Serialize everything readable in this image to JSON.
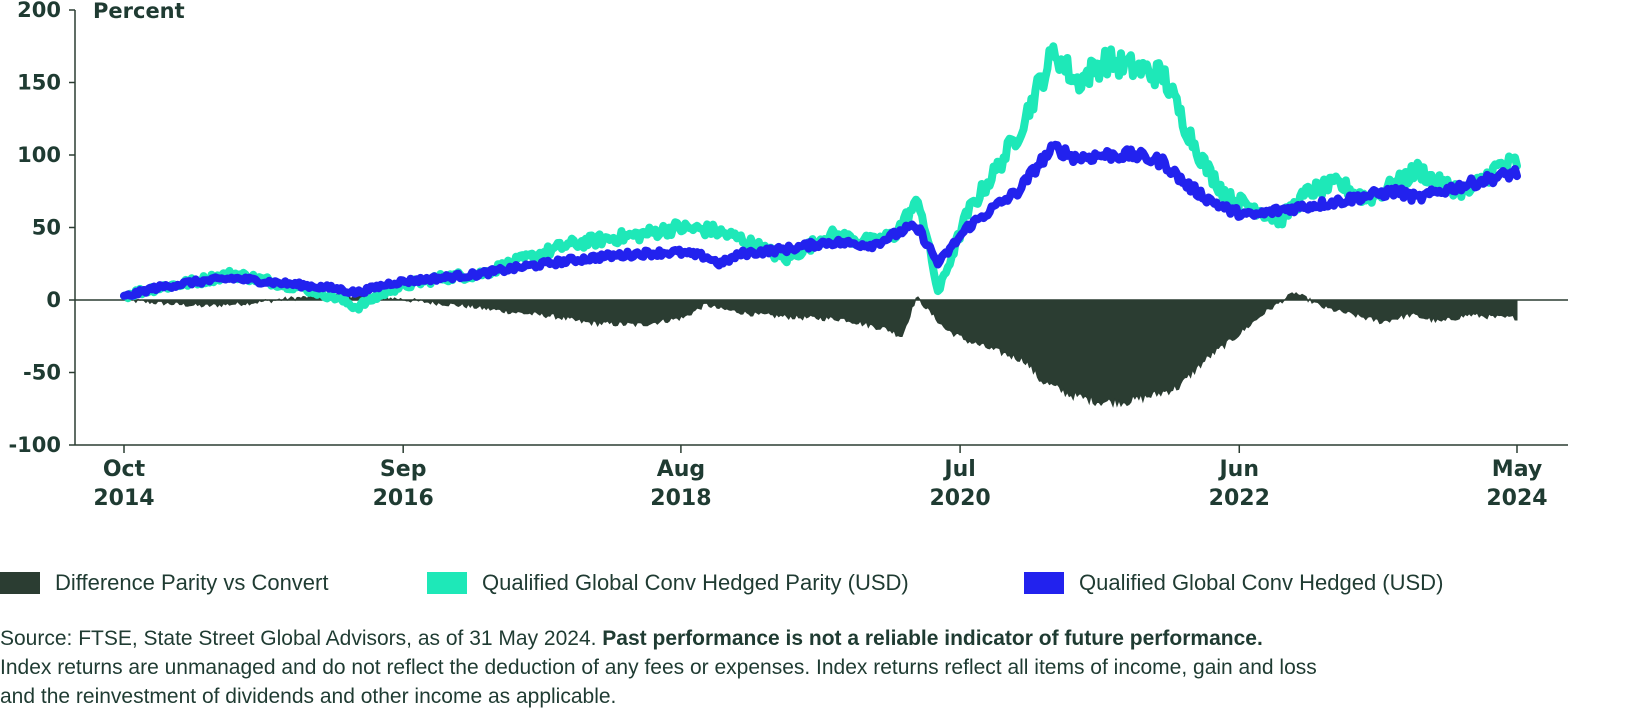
{
  "chart_data": {
    "type": "line",
    "ylabel": "Percent",
    "ylim": [
      -100,
      200
    ],
    "yticks": [
      "200",
      "150",
      "100",
      "50",
      "0",
      "-50",
      "-100"
    ],
    "xticks": [
      {
        "month": "Oct",
        "year": "2014",
        "date": 2014.75
      },
      {
        "month": "Sep",
        "year": "2016",
        "date": 2016.67
      },
      {
        "month": "Aug",
        "year": "2018",
        "date": 2018.58
      },
      {
        "month": "Jul",
        "year": "2020",
        "date": 2020.5
      },
      {
        "month": "Jun",
        "year": "2022",
        "date": 2022.42
      },
      {
        "month": "May",
        "year": "2024",
        "date": 2024.33
      }
    ],
    "xlim": [
      2014.75,
      2024.33
    ],
    "series": [
      {
        "name": "Difference Parity vs Convert",
        "kind": "area",
        "color": "#2b3d32",
        "x": [
          2014.75,
          2015.0,
          2015.3,
          2015.6,
          2015.9,
          2016.2,
          2016.5,
          2016.8,
          2017.1,
          2017.4,
          2017.7,
          2017.9,
          2018.0,
          2018.3,
          2018.6,
          2018.75,
          2018.85,
          2019.1,
          2019.4,
          2019.7,
          2019.9,
          2020.0,
          2020.1,
          2020.2,
          2020.4,
          2020.55,
          2020.75,
          2020.95,
          2021.05,
          2021.25,
          2021.45,
          2021.65,
          2021.85,
          2022.0,
          2022.2,
          2022.4,
          2022.6,
          2022.8,
          2023.0,
          2023.2,
          2023.4,
          2023.6,
          2023.8,
          2024.0,
          2024.2,
          2024.33
        ],
        "y": [
          0,
          -2,
          -4,
          -2,
          1,
          3,
          2,
          -1,
          -4,
          -8,
          -11,
          -15,
          -16,
          -17,
          -12,
          -3,
          -6,
          -10,
          -12,
          -13,
          -18,
          -20,
          -25,
          2,
          -20,
          -28,
          -35,
          -42,
          -55,
          -65,
          -70,
          -70,
          -65,
          -60,
          -40,
          -25,
          -8,
          5,
          -5,
          -10,
          -15,
          -10,
          -15,
          -10,
          -12,
          -12
        ]
      },
      {
        "name": "Qualified Global Conv Hedged Parity (USD)",
        "kind": "line",
        "color": "#1ee8b8",
        "x": [
          2014.75,
          2014.95,
          2015.2,
          2015.5,
          2015.8,
          2016.0,
          2016.2,
          2016.35,
          2016.6,
          2016.9,
          2017.2,
          2017.5,
          2017.8,
          2018.05,
          2018.3,
          2018.55,
          2018.8,
          2019.0,
          2019.3,
          2019.6,
          2019.9,
          2020.05,
          2020.15,
          2020.22,
          2020.35,
          2020.55,
          2020.75,
          2020.9,
          2021.05,
          2021.15,
          2021.3,
          2021.5,
          2021.7,
          2021.9,
          2022.05,
          2022.2,
          2022.35,
          2022.5,
          2022.7,
          2022.9,
          2023.1,
          2023.3,
          2023.5,
          2023.65,
          2023.8,
          2024.0,
          2024.2,
          2024.33
        ],
        "y": [
          3,
          8,
          12,
          18,
          12,
          8,
          2,
          -5,
          8,
          15,
          18,
          28,
          38,
          42,
          45,
          50,
          48,
          42,
          28,
          45,
          40,
          45,
          60,
          68,
          5,
          60,
          90,
          115,
          150,
          172,
          150,
          165,
          160,
          155,
          120,
          90,
          70,
          65,
          55,
          75,
          80,
          70,
          80,
          90,
          80,
          75,
          92,
          95
        ]
      },
      {
        "name": "Qualified Global Conv Hedged (USD)",
        "kind": "line",
        "color": "#2222ee",
        "x": [
          2014.75,
          2014.95,
          2015.2,
          2015.5,
          2015.8,
          2016.0,
          2016.2,
          2016.35,
          2016.6,
          2016.9,
          2017.2,
          2017.5,
          2017.8,
          2018.05,
          2018.3,
          2018.55,
          2018.75,
          2018.85,
          2019.0,
          2019.3,
          2019.6,
          2019.9,
          2020.05,
          2020.15,
          2020.22,
          2020.35,
          2020.55,
          2020.75,
          2020.9,
          2021.05,
          2021.15,
          2021.3,
          2021.5,
          2021.7,
          2021.9,
          2022.05,
          2022.2,
          2022.35,
          2022.5,
          2022.7,
          2022.9,
          2023.1,
          2023.3,
          2023.5,
          2023.65,
          2023.8,
          2024.0,
          2024.2,
          2024.33
        ],
        "y": [
          2,
          8,
          12,
          15,
          12,
          10,
          8,
          5,
          12,
          15,
          18,
          23,
          27,
          30,
          32,
          33,
          30,
          25,
          32,
          35,
          40,
          38,
          45,
          50,
          48,
          25,
          50,
          65,
          75,
          95,
          105,
          98,
          100,
          100,
          95,
          80,
          70,
          62,
          58,
          62,
          65,
          68,
          72,
          75,
          70,
          75,
          80,
          85,
          88
        ]
      }
    ]
  },
  "legend": [
    {
      "label": "Difference Parity vs Convert",
      "color": "#2b3d32"
    },
    {
      "label": "Qualified Global Conv Hedged Parity (USD)",
      "color": "#1ee8b8"
    },
    {
      "label": "Qualified Global Conv Hedged (USD)",
      "color": "#2222ee"
    }
  ],
  "source": {
    "line1_plain": "Source: FTSE, State Street Global Advisors, as of 31 May 2024. ",
    "line1_bold": "Past performance is not a reliable indicator of future performance.",
    "line2": "Index returns are unmanaged and do not reflect the deduction of any fees or expenses. Index returns reflect all items of income, gain and loss",
    "line3": "and the reinvestment of dividends and other income as applicable."
  }
}
